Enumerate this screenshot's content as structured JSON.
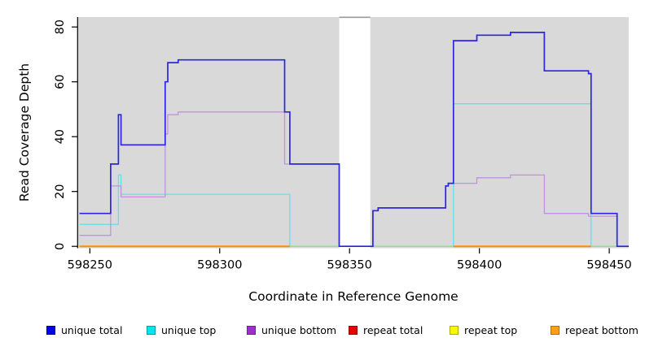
{
  "chart_data": {
    "type": "line",
    "subtype": "step-coverage-plot",
    "title": "",
    "xlabel": "Coordinate in Reference Genome",
    "ylabel": "Read Coverage Depth",
    "xlim": [
      598245.5,
      598457.5
    ],
    "ylim": [
      0,
      83.5
    ],
    "x_ticks": [
      598250,
      598300,
      598350,
      598400,
      598450
    ],
    "y_ticks": [
      0,
      20,
      40,
      60,
      80
    ],
    "grid": "off",
    "panel_bg": "#d9d9d9",
    "masked_region": {
      "start": 598346,
      "end": 598358,
      "fill": "#ffffff",
      "top_line_color": "#9a9a9a"
    },
    "series": [
      {
        "name": "unique total",
        "color": "#2b24e4",
        "line_width": 1.7,
        "points": [
          [
            598246,
            12
          ],
          [
            598258,
            30
          ],
          [
            598261,
            48
          ],
          [
            598262,
            37
          ],
          [
            598279,
            60
          ],
          [
            598280,
            67
          ],
          [
            598284,
            68
          ],
          [
            598325,
            49
          ],
          [
            598327,
            30
          ],
          [
            598346,
            0
          ],
          [
            598359,
            13
          ],
          [
            598361,
            14
          ],
          [
            598387,
            22
          ],
          [
            598388,
            23
          ],
          [
            598390,
            75
          ],
          [
            598399,
            77
          ],
          [
            598412,
            78
          ],
          [
            598425,
            64
          ],
          [
            598442,
            63
          ],
          [
            598443,
            12
          ],
          [
            598453,
            0
          ]
        ]
      },
      {
        "name": "unique top",
        "color": "#5fe2ec",
        "line_width": 1.3,
        "points": [
          [
            598246,
            8
          ],
          [
            598261,
            26
          ],
          [
            598262,
            19
          ],
          [
            598327,
            0
          ],
          [
            598390,
            52
          ],
          [
            598443,
            0
          ]
        ]
      },
      {
        "name": "unique bottom",
        "color": "#c191e0",
        "line_width": 1.3,
        "points": [
          [
            598246,
            4
          ],
          [
            598258,
            22
          ],
          [
            598262,
            18
          ],
          [
            598279,
            41
          ],
          [
            598280,
            48
          ],
          [
            598284,
            49
          ],
          [
            598325,
            30
          ],
          [
            598346,
            0
          ],
          [
            598359,
            13
          ],
          [
            598361,
            14
          ],
          [
            598387,
            22
          ],
          [
            598388,
            23
          ],
          [
            598399,
            25
          ],
          [
            598412,
            26
          ],
          [
            598425,
            12
          ],
          [
            598442,
            11
          ],
          [
            598453,
            0
          ]
        ]
      },
      {
        "name": "repeat total",
        "color": "#e60000",
        "line_width": 1.1,
        "points": [
          [
            598246,
            0
          ]
        ]
      },
      {
        "name": "repeat top",
        "color": "#f5f500",
        "line_width": 1.1,
        "points": [
          [
            598246,
            0
          ]
        ]
      }
    ],
    "baseline_segments": [
      {
        "color": "#ff8c00",
        "width": 2.0,
        "start": 598246,
        "end": 598327
      },
      {
        "color": "#98dc98",
        "width": 1.6,
        "start": 598327,
        "end": 598390
      },
      {
        "color": "#ff8c00",
        "width": 2.0,
        "start": 598390,
        "end": 598443
      },
      {
        "color": "#98dc98",
        "width": 1.6,
        "start": 598443,
        "end": 598457.5
      }
    ],
    "draw_order": [
      "repeat total",
      "repeat top",
      "unique top",
      "baseline:0",
      "baseline:1",
      "baseline:2",
      "baseline:3",
      "unique bottom",
      "unique total"
    ]
  },
  "legend": {
    "items": [
      {
        "label": "unique total",
        "color": "#0000e6"
      },
      {
        "label": "unique top",
        "color": "#00e6ee"
      },
      {
        "label": "unique bottom",
        "color": "#9a30d0"
      },
      {
        "label": "repeat total",
        "color": "#e60000"
      },
      {
        "label": "repeat top",
        "color": "#f8f800"
      },
      {
        "label": "repeat bottom",
        "color": "#ffa018"
      }
    ]
  }
}
